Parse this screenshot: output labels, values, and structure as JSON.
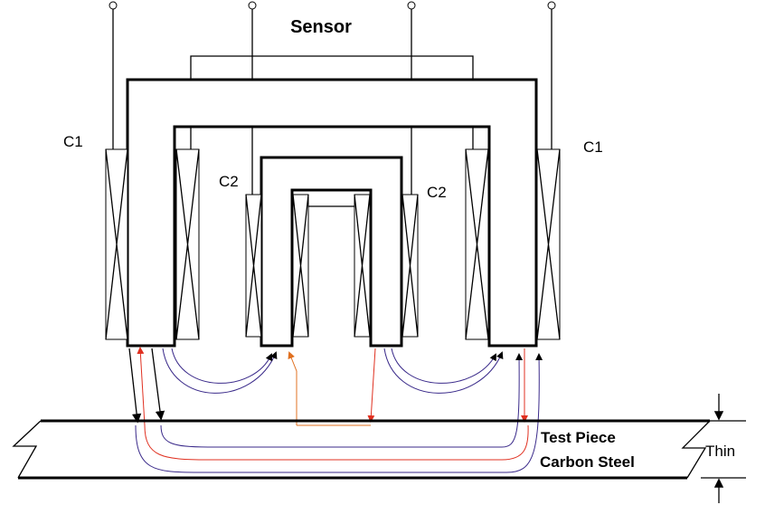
{
  "title": "Sensor",
  "coil_labels": [
    "C1",
    "C2",
    "C2",
    "C1"
  ],
  "test_piece": {
    "line1": "Test Piece",
    "line2": "Carbon Steel"
  },
  "thickness_label": "Thin"
}
